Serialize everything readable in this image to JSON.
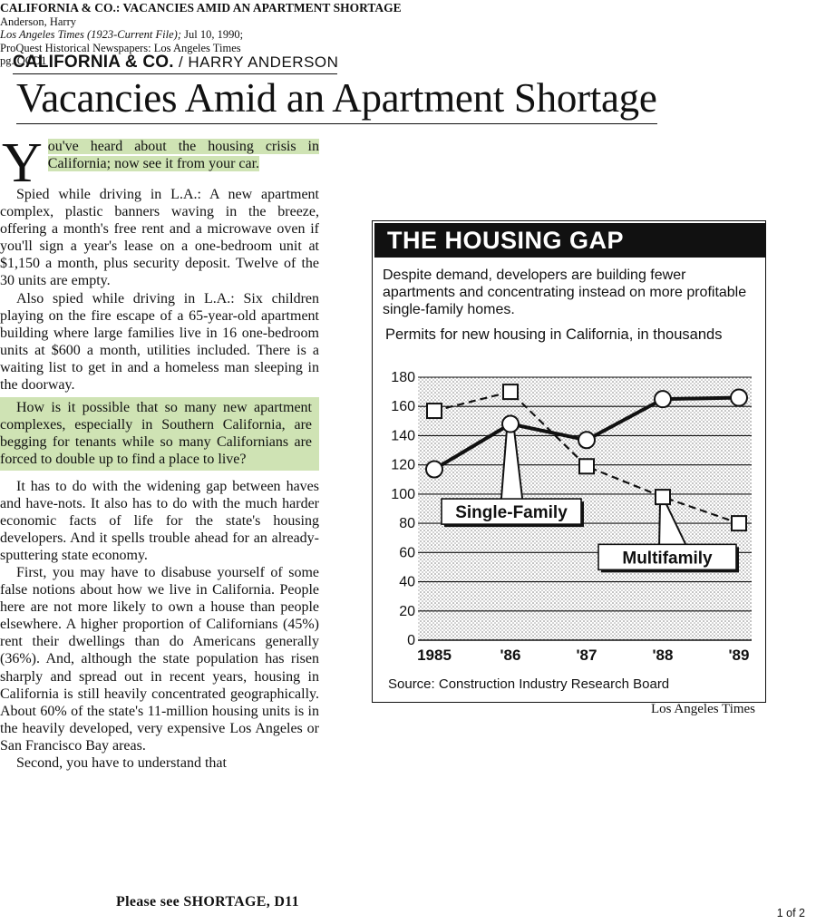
{
  "citation": {
    "title": "CALIFORNIA & CO.: VACANCIES AMID AN APARTMENT SHORTAGE",
    "author": "Anderson, Harry",
    "source_italic": "Los Angeles Times (1923-Current File);",
    "source_rest": " Jul 10, 1990;",
    "database": "ProQuest Historical Newspapers: Los Angeles Times",
    "page": "pg. OCD1"
  },
  "kicker": {
    "column": "CALIFORNIA & CO.",
    "separator": " / ",
    "author": "HARRY ANDERSON"
  },
  "headline": "Vacancies Amid an Apartment Shortage",
  "article": {
    "dropcap": "Y",
    "p1": "ou've heard about the housing crisis in California; now see it from your car.",
    "p2": "Spied while driving in L.A.: A new apartment complex, plastic banners waving in the breeze, offering a month's free rent and a microwave oven if you'll sign a year's lease on a one-bedroom unit at $1,150 a month, plus security deposit. Twelve of the 30 units are empty.",
    "p3": "Also spied while driving in L.A.: Six children playing on the fire escape of a 65-year-old apartment building where large families live in 16 one-bedroom units at $600 a month, utilities included. There is a waiting list to get in and a homeless man sleeping in the doorway.",
    "p4": "How is it possible that so many new apartment complexes, especially in Southern California, are begging for tenants while so many Californians are forced to double up to find a place to live?",
    "p5": "It has to do with the widening gap between haves and have-nots. It also has to do with the much harder economic facts of life for the state's housing developers. And it spells trouble ahead for an already-sputtering state economy.",
    "p6": "First, you may have to disabuse yourself of some false notions about how we live in California. People here are not more likely to own a house than people elsewhere. A higher proportion of Californians (45%) rent their dwellings than do Americans generally (36%). And, although the state population has risen sharply and spread out in recent years, housing in California is still heavily concentrated geographically. About 60% of the state's 11-million housing units is in the heavily developed, very expensive Los Angeles or San Francisco Bay areas.",
    "p7": "Second, you have to understand that",
    "continued": "Please see SHORTAGE, D11",
    "highlight_color": "#cfe3b4"
  },
  "graphic": {
    "title": "THE HOUSING GAP",
    "description": "Despite demand, developers are building fewer apartments and concentrating instead on more profitable single-family homes.",
    "subtitle": "Permits for new housing in California, in thousands",
    "source": "Source: Construction Industry Research Board",
    "credit": "Los Angeles Times"
  },
  "chart_data": {
    "type": "line",
    "title": "THE HOUSING GAP",
    "x": [
      "1985",
      "'86",
      "'87",
      "'88",
      "'89"
    ],
    "yticks": [
      "0",
      "20",
      "40",
      "60",
      "80",
      "100",
      "120",
      "140",
      "160",
      "180"
    ],
    "ylim": [
      0,
      180
    ],
    "grid": true,
    "series": [
      {
        "name": "Single-Family",
        "values": [
          117,
          148,
          137,
          165,
          166
        ],
        "marker": "circle",
        "style": "solid"
      },
      {
        "name": "Multifamily",
        "values": [
          157,
          170,
          119,
          98,
          80
        ],
        "marker": "square",
        "style": "dashed"
      }
    ]
  },
  "page_indicator": "1 of 2"
}
